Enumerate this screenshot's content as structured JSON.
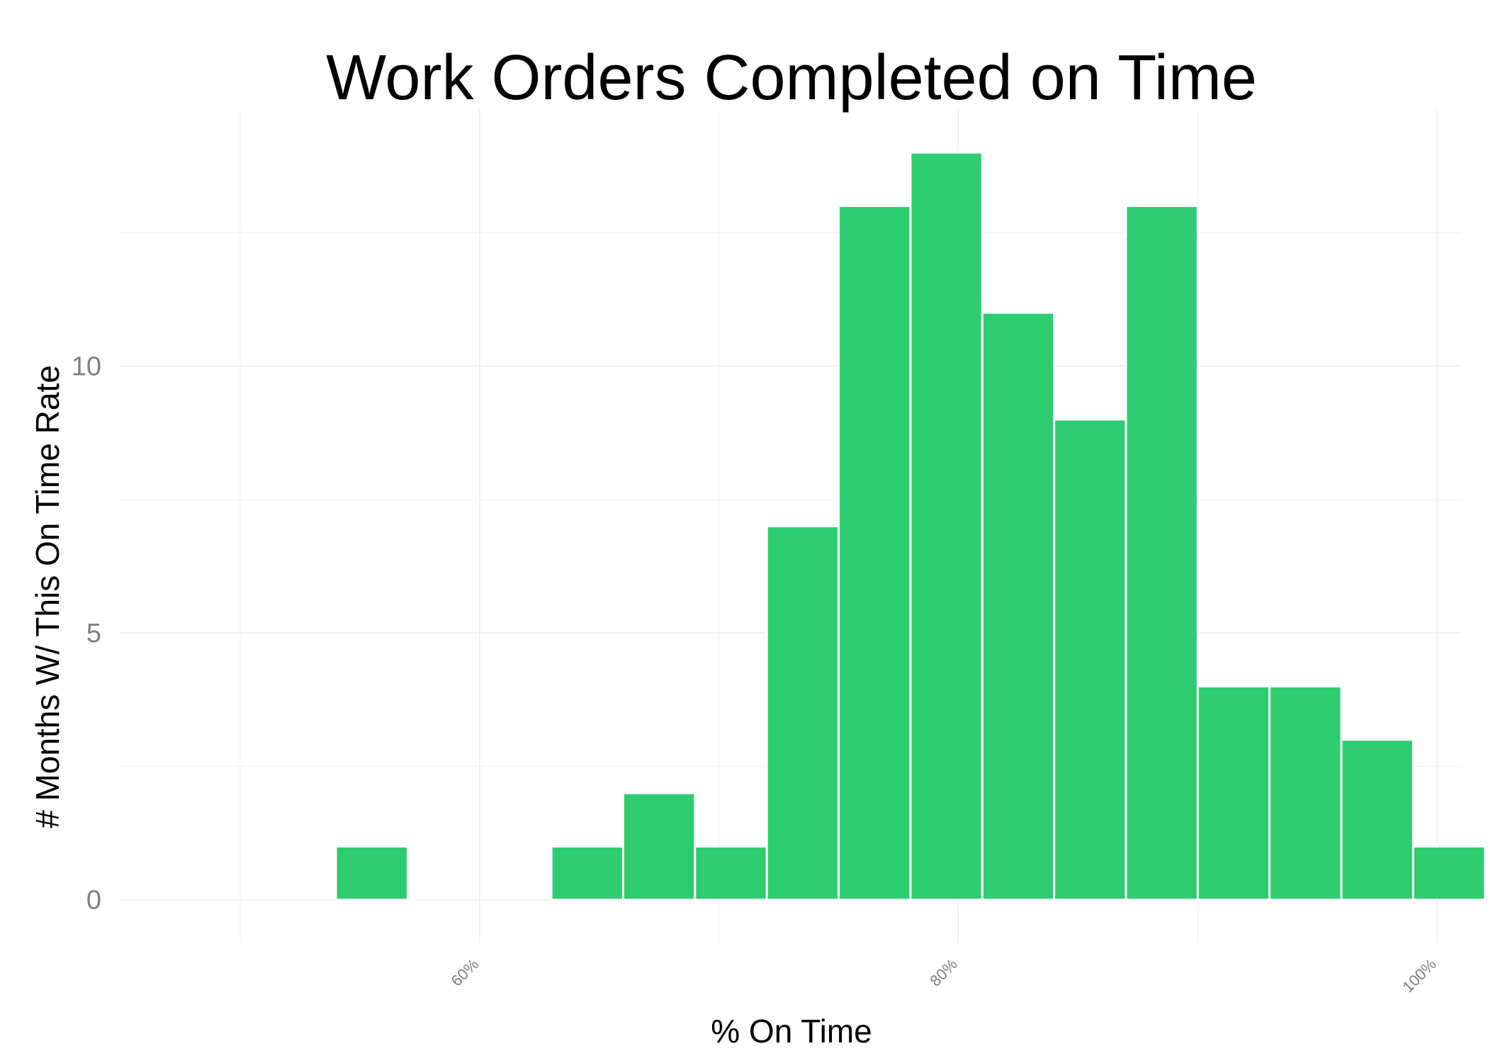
{
  "chart_data": {
    "type": "bar",
    "title": "Work Orders Completed on Time",
    "xlabel": "% On Time",
    "ylabel": "# Months W/ This On Time Rate",
    "bar_color": "#2ecc71",
    "xlim": [
      0.45,
      1.01
    ],
    "ylim": [
      -0.8,
      14.8
    ],
    "x_ticks": [
      {
        "value": 0.6,
        "label": "60%"
      },
      {
        "value": 0.8,
        "label": "80%"
      },
      {
        "value": 1.0,
        "label": "100%"
      }
    ],
    "x_minor_gridlines": [
      0.5,
      0.7,
      0.9
    ],
    "y_ticks": [
      {
        "value": 0,
        "label": "0"
      },
      {
        "value": 5,
        "label": "5"
      },
      {
        "value": 10,
        "label": "10"
      }
    ],
    "y_minor_gridlines": [
      2.5,
      7.5,
      12.5
    ],
    "bin_width": 0.03,
    "bins": [
      {
        "x0": 0.54,
        "count": 1
      },
      {
        "x0": 0.57,
        "count": 0
      },
      {
        "x0": 0.6,
        "count": 0
      },
      {
        "x0": 0.63,
        "count": 1
      },
      {
        "x0": 0.66,
        "count": 2
      },
      {
        "x0": 0.69,
        "count": 1
      },
      {
        "x0": 0.72,
        "count": 7
      },
      {
        "x0": 0.75,
        "count": 13
      },
      {
        "x0": 0.78,
        "count": 14
      },
      {
        "x0": 0.81,
        "count": 11
      },
      {
        "x0": 0.84,
        "count": 9
      },
      {
        "x0": 0.87,
        "count": 13
      },
      {
        "x0": 0.9,
        "count": 4
      },
      {
        "x0": 0.93,
        "count": 4
      },
      {
        "x0": 0.96,
        "count": 3
      },
      {
        "x0": 0.99,
        "count": 1
      }
    ],
    "grid": true,
    "legend": "none"
  }
}
